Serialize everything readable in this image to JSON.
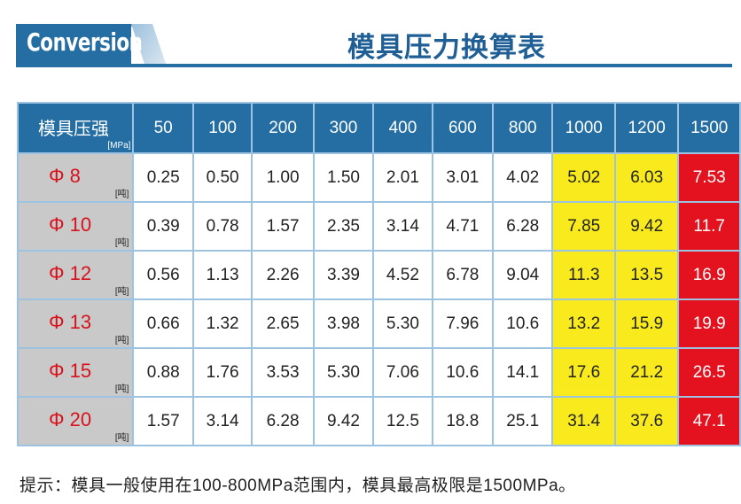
{
  "header": {
    "badge": "Conversion",
    "title": "模具压力换算表"
  },
  "table": {
    "corner_label": "模具压强",
    "corner_unit": "[MPa]",
    "columns": [
      "50",
      "100",
      "200",
      "300",
      "400",
      "600",
      "800",
      "1000",
      "1200",
      "1500"
    ],
    "row_unit": "[吨]",
    "rows": [
      {
        "label": "Φ 8",
        "values": [
          "0.25",
          "0.50",
          "1.00",
          "1.50",
          "2.01",
          "3.01",
          "4.02",
          "5.02",
          "6.03",
          "7.53"
        ]
      },
      {
        "label": "Φ 10",
        "values": [
          "0.39",
          "0.78",
          "1.57",
          "2.35",
          "3.14",
          "4.71",
          "6.28",
          "7.85",
          "9.42",
          "11.7"
        ]
      },
      {
        "label": "Φ 12",
        "values": [
          "0.56",
          "1.13",
          "2.26",
          "3.39",
          "4.52",
          "6.78",
          "9.04",
          "11.3",
          "13.5",
          "16.9"
        ]
      },
      {
        "label": "Φ 13",
        "values": [
          "0.66",
          "1.32",
          "2.65",
          "3.98",
          "5.30",
          "7.96",
          "10.6",
          "13.2",
          "15.9",
          "19.9"
        ]
      },
      {
        "label": "Φ 15",
        "values": [
          "0.88",
          "1.76",
          "3.53",
          "5.30",
          "7.06",
          "10.6",
          "14.1",
          "17.6",
          "21.2",
          "26.5"
        ]
      },
      {
        "label": "Φ 20",
        "values": [
          "1.57",
          "3.14",
          "6.28",
          "9.42",
          "12.5",
          "18.8",
          "25.1",
          "31.4",
          "37.6",
          "47.1"
        ]
      }
    ]
  },
  "colors": {
    "header_blue": "#246ea3",
    "caution_yellow": "#f8ea1c",
    "limit_red": "#e3121e",
    "row_label_gray": "#c9c9c9"
  },
  "footnote": "提示：模具一般使用在100-800MPa范围内，模具最高极限是1500MPa。"
}
